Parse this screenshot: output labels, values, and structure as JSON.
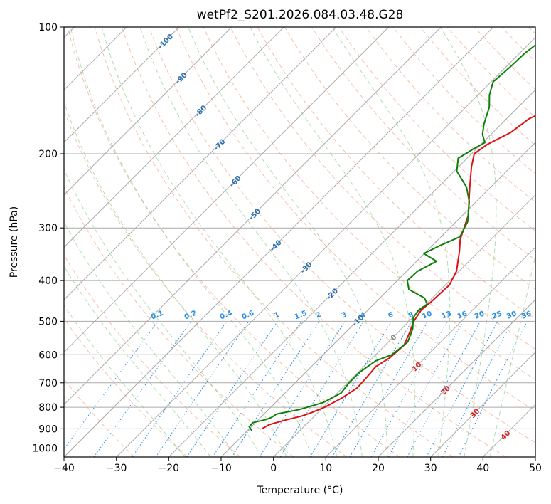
{
  "chart_data": {
    "type": "line",
    "subtype": "skew-t log-p",
    "title": "wetPf2_S201.2026.084.03.48.G28",
    "xlabel": "Temperature (°C)",
    "ylabel": "Pressure (hPa)",
    "xlim": [
      -40,
      50
    ],
    "ylim": [
      1050,
      100
    ],
    "x_ticks": [
      -40,
      -30,
      -20,
      -10,
      0,
      10,
      20,
      30,
      40,
      50
    ],
    "x_tick_labels": [
      "−40",
      "−30",
      "−20",
      "−10",
      "0",
      "10",
      "20",
      "30",
      "40",
      "50"
    ],
    "y_ticks": [
      100,
      200,
      300,
      400,
      500,
      600,
      700,
      800,
      900,
      1000
    ],
    "y_tick_labels": [
      "100",
      "200",
      "300",
      "400",
      "500",
      "600",
      "700",
      "800",
      "900",
      "1000"
    ],
    "grid": true,
    "series": [
      {
        "name": "Temperature",
        "color": "#e01010",
        "points": [
          {
            "p": 900,
            "t": -7.6
          },
          {
            "p": 880,
            "t": -7.0
          },
          {
            "p": 860,
            "t": -5.0
          },
          {
            "p": 840,
            "t": -2.5
          },
          {
            "p": 825,
            "t": -1.3
          },
          {
            "p": 800,
            "t": 0.3
          },
          {
            "p": 760,
            "t": 1.8
          },
          {
            "p": 720,
            "t": 2.8
          },
          {
            "p": 680,
            "t": 2.6
          },
          {
            "p": 640,
            "t": 2.3
          },
          {
            "p": 610,
            "t": 3.3
          },
          {
            "p": 570,
            "t": 3.6
          },
          {
            "p": 530,
            "t": 2.2
          },
          {
            "p": 500,
            "t": 0.9
          },
          {
            "p": 470,
            "t": 0.2
          },
          {
            "p": 450,
            "t": 0.5
          },
          {
            "p": 410,
            "t": 0.8
          },
          {
            "p": 380,
            "t": -0.5
          },
          {
            "p": 340,
            "t": -3.8
          },
          {
            "p": 320,
            "t": -5.8
          },
          {
            "p": 280,
            "t": -8.9
          },
          {
            "p": 240,
            "t": -14.0
          },
          {
            "p": 215,
            "t": -17.5
          },
          {
            "p": 200,
            "t": -19.5
          },
          {
            "p": 190,
            "t": -18.8
          },
          {
            "p": 178,
            "t": -16.6
          },
          {
            "p": 165,
            "t": -15.7
          },
          {
            "p": 155,
            "t": -13.2
          },
          {
            "p": 148,
            "t": -10.3
          },
          {
            "p": 140,
            "t": -6.7
          },
          {
            "p": 130,
            "t": -2.9
          },
          {
            "p": 120,
            "t": 1.4
          },
          {
            "p": 112,
            "t": 5.7
          },
          {
            "p": 105,
            "t": 7.7
          },
          {
            "p": 100,
            "t": 8.7
          }
        ]
      },
      {
        "name": "Dewpoint",
        "color": "#0a820a",
        "points": [
          {
            "p": 910,
            "t": -9.1
          },
          {
            "p": 890,
            "t": -10.4
          },
          {
            "p": 870,
            "t": -10.5
          },
          {
            "p": 855,
            "t": -8.5
          },
          {
            "p": 845,
            "t": -7.9
          },
          {
            "p": 830,
            "t": -7.6
          },
          {
            "p": 810,
            "t": -4.1
          },
          {
            "p": 780,
            "t": -0.9
          },
          {
            "p": 740,
            "t": 0.7
          },
          {
            "p": 700,
            "t": 0.3
          },
          {
            "p": 660,
            "t": 0.3
          },
          {
            "p": 620,
            "t": 1.2
          },
          {
            "p": 600,
            "t": 3.1
          },
          {
            "p": 560,
            "t": 3.7
          },
          {
            "p": 520,
            "t": 2.1
          },
          {
            "p": 490,
            "t": 0.1
          },
          {
            "p": 470,
            "t": -0.3
          },
          {
            "p": 455,
            "t": 0.2
          },
          {
            "p": 440,
            "t": -1.5
          },
          {
            "p": 420,
            "t": -6.1
          },
          {
            "p": 400,
            "t": -8.1
          },
          {
            "p": 380,
            "t": -7.9
          },
          {
            "p": 360,
            "t": -6.2
          },
          {
            "p": 345,
            "t": -10.1
          },
          {
            "p": 330,
            "t": -8.5
          },
          {
            "p": 315,
            "t": -6.4
          },
          {
            "p": 290,
            "t": -7.8
          },
          {
            "p": 260,
            "t": -11.3
          },
          {
            "p": 240,
            "t": -14.6
          },
          {
            "p": 220,
            "t": -19.5
          },
          {
            "p": 205,
            "t": -21.7
          },
          {
            "p": 195,
            "t": -20.6
          },
          {
            "p": 188,
            "t": -19.6
          },
          {
            "p": 180,
            "t": -21.6
          },
          {
            "p": 170,
            "t": -23.3
          },
          {
            "p": 155,
            "t": -25.5
          },
          {
            "p": 145,
            "t": -27.8
          },
          {
            "p": 135,
            "t": -29.6
          },
          {
            "p": 125,
            "t": -29.2
          },
          {
            "p": 115,
            "t": -29.0
          },
          {
            "p": 107,
            "t": -28.2
          },
          {
            "p": 100,
            "t": -26.7
          }
        ]
      }
    ],
    "isotherm_labels": [
      {
        "t": -100,
        "label": "-100"
      },
      {
        "t": -90,
        "label": "-90"
      },
      {
        "t": -80,
        "label": "-80"
      },
      {
        "t": -70,
        "label": "-70"
      },
      {
        "t": -60,
        "label": "-60"
      },
      {
        "t": -50,
        "label": "-50"
      },
      {
        "t": -40,
        "label": "-40"
      },
      {
        "t": -30,
        "label": "-30"
      },
      {
        "t": -20,
        "label": "-20"
      },
      {
        "t": -10,
        "label": "-10"
      }
    ],
    "freezing_label": "0",
    "warm_isotherm_labels": [
      {
        "t": 10,
        "label": "10"
      },
      {
        "t": 20,
        "label": "20"
      },
      {
        "t": 30,
        "label": "30"
      },
      {
        "t": 40,
        "label": "40"
      }
    ],
    "mixing_ratio_labels": [
      {
        "w": 0.1,
        "label": "0.1"
      },
      {
        "w": 0.2,
        "label": "0.2"
      },
      {
        "w": 0.4,
        "label": "0.4"
      },
      {
        "w": 0.6,
        "label": "0.6"
      },
      {
        "w": 1,
        "label": "1"
      },
      {
        "w": 1.5,
        "label": "1.5"
      },
      {
        "w": 2,
        "label": "2"
      },
      {
        "w": 3,
        "label": "3"
      },
      {
        "w": 4,
        "label": "4"
      },
      {
        "w": 6,
        "label": "6"
      },
      {
        "w": 8,
        "label": "8"
      },
      {
        "w": 10,
        "label": "10"
      },
      {
        "w": 13,
        "label": "13"
      },
      {
        "w": 16,
        "label": "16"
      },
      {
        "w": 20,
        "label": "20"
      },
      {
        "w": 25,
        "label": "25"
      },
      {
        "w": 30,
        "label": "30"
      },
      {
        "w": 36,
        "label": "36"
      }
    ],
    "colors": {
      "temperature": "#e01010",
      "dewpoint": "#0a820a",
      "isotherm": "#aaaaaa",
      "isobar": "#aaaaaa",
      "dry_adiabat": "#f4a582",
      "moist_adiabat": "#8fcf8f",
      "mixing_ratio": "#2a8fe0",
      "isotherm_label": "#2a6fb0",
      "warm_label": "#d62728",
      "freezing_label": "#888888",
      "mixing_label": "#2a8fe0"
    }
  }
}
